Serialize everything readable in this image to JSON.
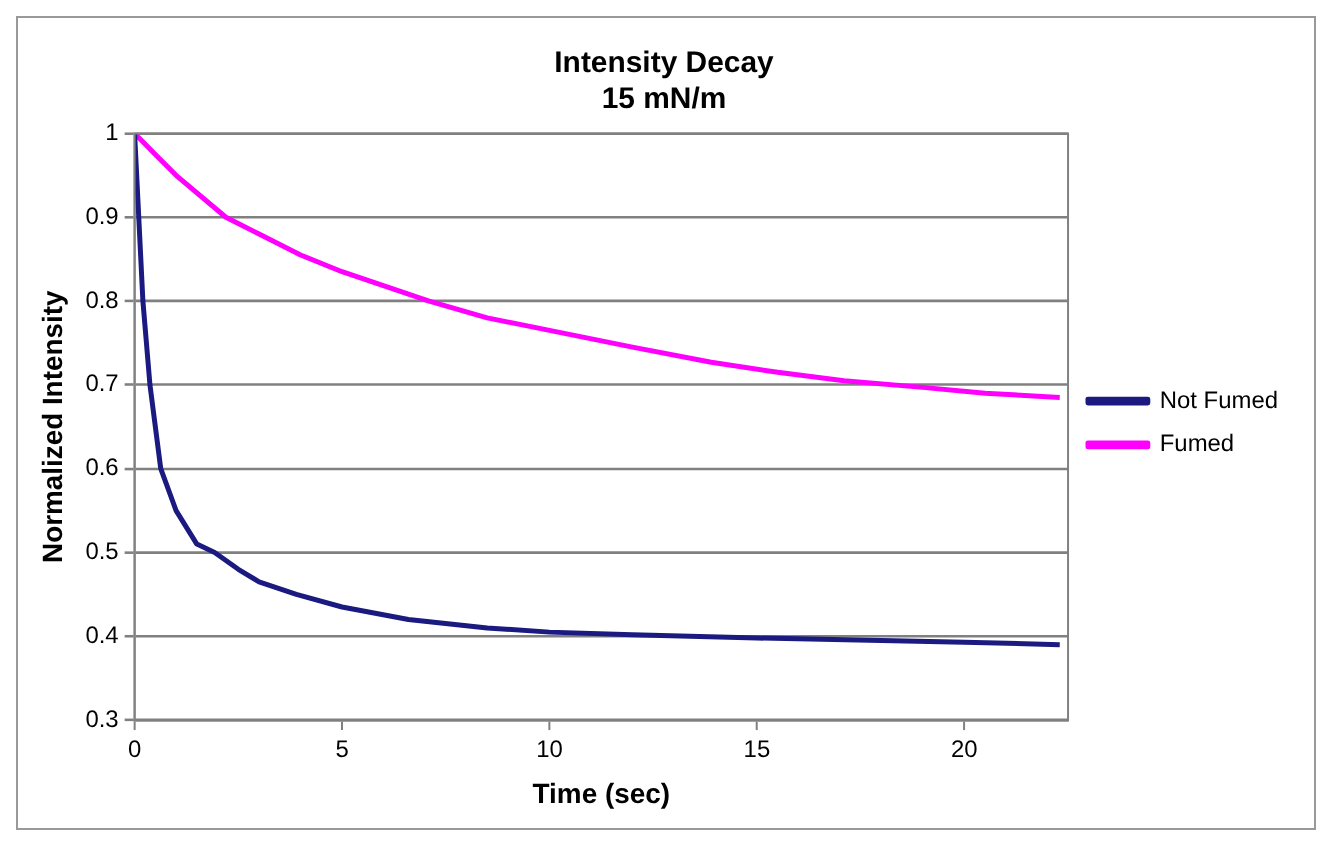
{
  "chart_data": {
    "type": "line",
    "title": "Intensity Decay",
    "subtitle": "15 mN/m",
    "xlabel": "Time (sec)",
    "ylabel": "Normalized Intensity",
    "xlim": [
      0,
      22.5
    ],
    "xticks": [
      0,
      5,
      10,
      15,
      20
    ],
    "ylim": [
      0.3,
      1
    ],
    "yticks": [
      {
        "value": 0.3,
        "label": "0.3"
      },
      {
        "value": 0.4,
        "label": "0.4"
      },
      {
        "value": 0.5,
        "label": "0.5"
      },
      {
        "value": 0.6,
        "label": "0.6"
      },
      {
        "value": 0.7,
        "label": "0.7"
      },
      {
        "value": 0.8,
        "label": "0.8"
      },
      {
        "value": 0.9,
        "label": "0.9"
      },
      {
        "value": 1,
        "label": "1"
      }
    ],
    "grid": "y",
    "legend": "right",
    "marker": "none",
    "line_style": "solid",
    "series": [
      {
        "name": "Not Fumed",
        "color": "#1a1a80",
        "x": [
          0,
          0.1,
          0.2,
          0.37,
          0.63,
          1,
          1.5,
          1.93,
          2.5,
          3,
          3.9,
          5,
          6.6,
          8.5,
          10,
          12,
          15,
          18,
          20,
          22.3
        ],
        "values": [
          1,
          0.9,
          0.8,
          0.7,
          0.6,
          0.55,
          0.51,
          0.5,
          0.48,
          0.465,
          0.45,
          0.435,
          0.42,
          0.41,
          0.405,
          0.402,
          0.398,
          0.395,
          0.393,
          0.39
        ]
      },
      {
        "name": "Fumed",
        "color": "#ff00ff",
        "x": [
          0,
          0.5,
          1,
          2.2,
          3,
          4,
          5,
          7.1,
          8.5,
          10.3,
          12,
          13.9,
          15.5,
          17.1,
          19,
          20.5,
          22.3
        ],
        "values": [
          1,
          0.975,
          0.95,
          0.9,
          0.88,
          0.855,
          0.835,
          0.8,
          0.78,
          0.762,
          0.745,
          0.727,
          0.715,
          0.705,
          0.697,
          0.69,
          0.685
        ]
      }
    ]
  }
}
